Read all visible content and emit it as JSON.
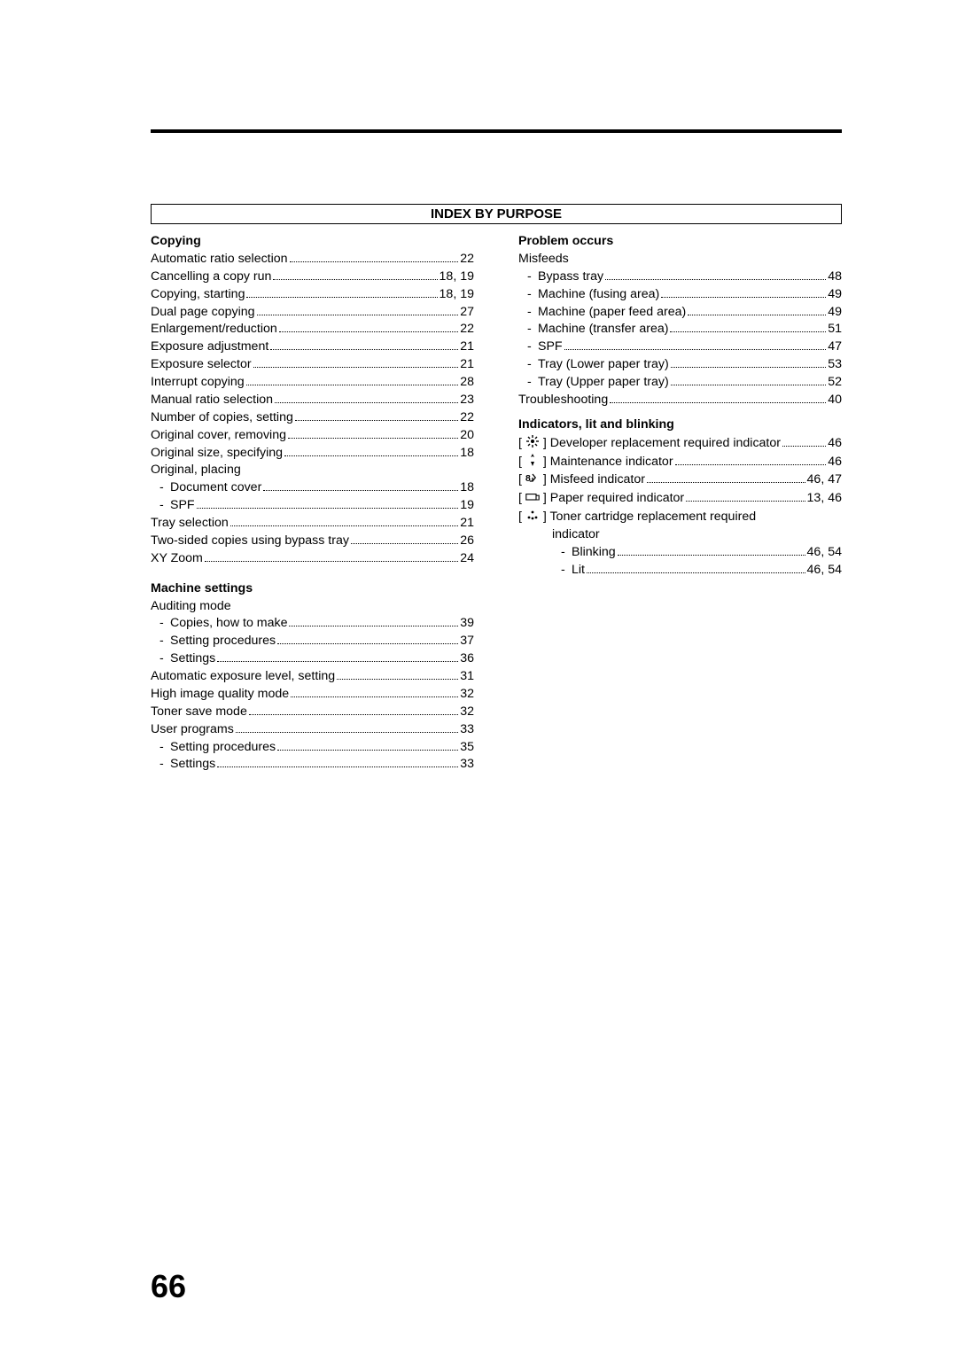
{
  "page_number": "66",
  "section_header": "INDEX BY PURPOSE",
  "left": {
    "copying": {
      "title": "Copying",
      "items": [
        {
          "label": "Automatic ratio selection",
          "page": "22"
        },
        {
          "label": "Cancelling a copy run",
          "page": "18, 19"
        },
        {
          "label": "Copying, starting",
          "page": "18, 19"
        },
        {
          "label": "Dual page copying",
          "page": "27"
        },
        {
          "label": "Enlargement/reduction",
          "page": "22"
        },
        {
          "label": "Exposure adjustment",
          "page": "21"
        },
        {
          "label": "Exposure selector",
          "page": "21"
        },
        {
          "label": "Interrupt copying",
          "page": "28"
        },
        {
          "label": "Manual ratio selection",
          "page": "23"
        },
        {
          "label": "Number of copies, setting",
          "page": "22"
        },
        {
          "label": "Original cover, removing",
          "page": "20"
        },
        {
          "label": "Original size, specifying",
          "page": "18"
        }
      ],
      "placing_label": "Original, placing",
      "placing": [
        {
          "label": "Document cover",
          "page": "18"
        },
        {
          "label": "SPF",
          "page": "19"
        }
      ],
      "rest": [
        {
          "label": "Tray selection",
          "page": "21"
        },
        {
          "label": "Two-sided copies using bypass tray",
          "page": "26"
        },
        {
          "label": "XY Zoom",
          "page": "24"
        }
      ]
    },
    "machine": {
      "title": "Machine settings",
      "auditing_label": "Auditing mode",
      "auditing": [
        {
          "label": "Copies, how to make",
          "page": "39"
        },
        {
          "label": "Setting procedures",
          "page": "37"
        },
        {
          "label": "Settings",
          "page": "36"
        }
      ],
      "items": [
        {
          "label": "Automatic exposure level, setting",
          "page": "31"
        },
        {
          "label": "High image quality mode",
          "page": "32"
        },
        {
          "label": "Toner save mode",
          "page": "32"
        },
        {
          "label": "User programs",
          "page": "33"
        }
      ],
      "user_sub": [
        {
          "label": "Setting procedures",
          "page": "35"
        },
        {
          "label": "Settings",
          "page": "33"
        }
      ]
    }
  },
  "right": {
    "problem": {
      "title": "Problem occurs",
      "misfeeds_label": "Misfeeds",
      "misfeeds": [
        {
          "label": "Bypass tray",
          "page": "48"
        },
        {
          "label": "Machine (fusing area)",
          "page": "49"
        },
        {
          "label": "Machine (paper feed area)",
          "page": "49"
        },
        {
          "label": "Machine (transfer area)",
          "page": "51"
        },
        {
          "label": "SPF",
          "page": "47"
        },
        {
          "label": "Tray (Lower paper tray)",
          "page": "53"
        },
        {
          "label": "Tray (Upper paper tray)",
          "page": "52"
        }
      ],
      "troubleshooting": {
        "label": "Troubleshooting",
        "page": "40"
      }
    },
    "indicators": {
      "title": "Indicators, lit and blinking",
      "items": [
        {
          "icon": "developer",
          "label": "Developer replacement required indicator",
          "page": "46"
        },
        {
          "icon": "maintenance",
          "label": "Maintenance indicator",
          "page": "46"
        },
        {
          "icon": "misfeed",
          "label": "Misfeed indicator",
          "page": "46, 47"
        },
        {
          "icon": "paper",
          "label": "Paper required indicator",
          "page": "13, 46"
        }
      ],
      "toner": {
        "icon": "toner",
        "label": "Toner cartridge replacement required",
        "label2": "indicator",
        "sub": [
          {
            "label": "Blinking",
            "page": "46, 54"
          },
          {
            "label": "Lit",
            "page": "46, 54"
          }
        ]
      }
    }
  }
}
